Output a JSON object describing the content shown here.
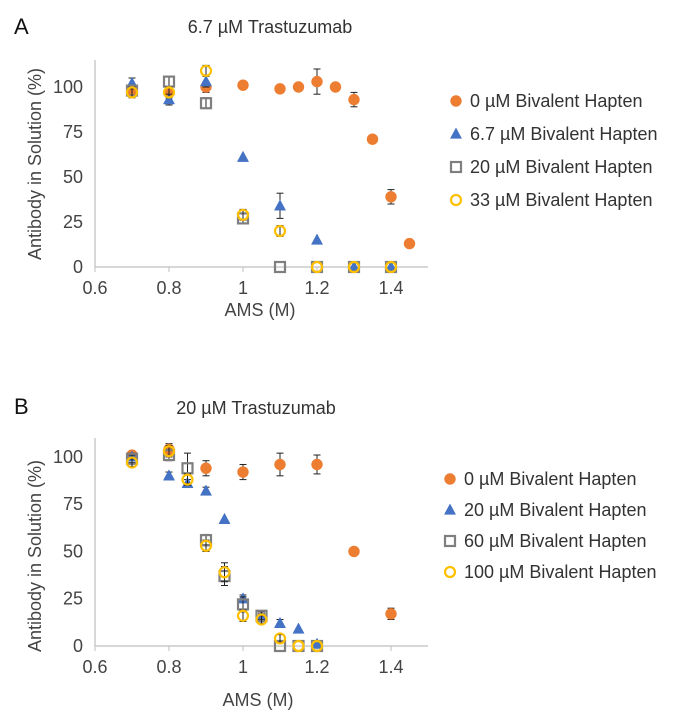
{
  "chart_data": [
    {
      "panel_label": "A",
      "type": "scatter",
      "title": "6.7 µM Trastuzumab",
      "xlabel": "AMS (M)",
      "ylabel": "Antibody in Solution (%)",
      "xlim": [
        0.6,
        1.5
      ],
      "ylim": [
        0,
        115
      ],
      "xticks": [
        "0.6",
        "0.8",
        "1",
        "1.2",
        "1.4"
      ],
      "yticks": [
        "0",
        "25",
        "50",
        "75",
        "100"
      ],
      "grid": false,
      "legend_position": "right",
      "series": [
        {
          "name": "0 µM Bivalent Hapten",
          "marker": "circle-filled",
          "color": "#ED7D31",
          "points": [
            {
              "x": 0.7,
              "y": 98,
              "err": 3
            },
            {
              "x": 0.8,
              "y": 97,
              "err": 3
            },
            {
              "x": 0.9,
              "y": 100,
              "err": 3
            },
            {
              "x": 1.0,
              "y": 101,
              "err": 1
            },
            {
              "x": 1.1,
              "y": 99,
              "err": 1
            },
            {
              "x": 1.15,
              "y": 100,
              "err": 1
            },
            {
              "x": 1.2,
              "y": 103,
              "err": 7
            },
            {
              "x": 1.25,
              "y": 100,
              "err": 1
            },
            {
              "x": 1.3,
              "y": 93,
              "err": 4
            },
            {
              "x": 1.35,
              "y": 71,
              "err": 1
            },
            {
              "x": 1.4,
              "y": 39,
              "err": 4
            },
            {
              "x": 1.45,
              "y": 13,
              "err": 1
            }
          ]
        },
        {
          "name": "6.7 µM Bivalent Hapten",
          "marker": "triangle-filled",
          "color": "#4472C4",
          "points": [
            {
              "x": 0.7,
              "y": 102,
              "err": 3
            },
            {
              "x": 0.8,
              "y": 93,
              "err": 3
            },
            {
              "x": 0.9,
              "y": 103,
              "err": 3
            },
            {
              "x": 1.0,
              "y": 61,
              "err": 1
            },
            {
              "x": 1.1,
              "y": 34,
              "err": 7
            },
            {
              "x": 1.2,
              "y": 15,
              "err": 1
            },
            {
              "x": 1.3,
              "y": 0,
              "err": 0
            },
            {
              "x": 1.4,
              "y": 0,
              "err": 0
            }
          ]
        },
        {
          "name": "20 µM Bivalent Hapten",
          "marker": "square-open",
          "color": "#7F7F7F",
          "points": [
            {
              "x": 0.7,
              "y": 98,
              "err": 3
            },
            {
              "x": 0.8,
              "y": 103,
              "err": 3
            },
            {
              "x": 0.9,
              "y": 91,
              "err": 3
            },
            {
              "x": 1.0,
              "y": 27,
              "err": 3
            },
            {
              "x": 1.1,
              "y": 0,
              "err": 0
            },
            {
              "x": 1.2,
              "y": 0,
              "err": 0
            },
            {
              "x": 1.3,
              "y": 0,
              "err": 0
            },
            {
              "x": 1.4,
              "y": 0,
              "err": 0
            }
          ]
        },
        {
          "name": "33 µM Bivalent Hapten",
          "marker": "circle-open",
          "color": "#FFC000",
          "points": [
            {
              "x": 0.7,
              "y": 97,
              "err": 3
            },
            {
              "x": 0.8,
              "y": 97,
              "err": 3
            },
            {
              "x": 0.9,
              "y": 109,
              "err": 3
            },
            {
              "x": 1.0,
              "y": 29,
              "err": 3
            },
            {
              "x": 1.1,
              "y": 20,
              "err": 3
            },
            {
              "x": 1.2,
              "y": 0,
              "err": 0
            },
            {
              "x": 1.3,
              "y": 0,
              "err": 0
            },
            {
              "x": 1.4,
              "y": 0,
              "err": 0
            }
          ]
        }
      ]
    },
    {
      "panel_label": "B",
      "type": "scatter",
      "title": "20 µM Trastuzumab",
      "xlabel": "AMS (M)",
      "ylabel": "Antibody in Solution (%)",
      "xlim": [
        0.6,
        1.5
      ],
      "ylim": [
        0,
        110
      ],
      "xticks": [
        "0.6",
        "0.8",
        "1",
        "1.2",
        "1.4"
      ],
      "yticks": [
        "0",
        "25",
        "50",
        "75",
        "100"
      ],
      "grid": false,
      "legend_position": "right",
      "series": [
        {
          "name": "0 µM Bivalent Hapten",
          "marker": "circle-filled",
          "color": "#ED7D31",
          "points": [
            {
              "x": 0.7,
              "y": 101,
              "err": 2
            },
            {
              "x": 0.8,
              "y": 104,
              "err": 3
            },
            {
              "x": 0.9,
              "y": 94,
              "err": 4
            },
            {
              "x": 1.0,
              "y": 92,
              "err": 4
            },
            {
              "x": 1.1,
              "y": 96,
              "err": 6
            },
            {
              "x": 1.2,
              "y": 96,
              "err": 5
            },
            {
              "x": 1.3,
              "y": 50,
              "err": 1
            },
            {
              "x": 1.4,
              "y": 17,
              "err": 3
            }
          ]
        },
        {
          "name": "20 µM Bivalent Hapten",
          "marker": "triangle-filled",
          "color": "#4472C4",
          "points": [
            {
              "x": 0.7,
              "y": 100,
              "err": 2
            },
            {
              "x": 0.8,
              "y": 90,
              "err": 2
            },
            {
              "x": 0.85,
              "y": 86,
              "err": 2
            },
            {
              "x": 0.9,
              "y": 82,
              "err": 2
            },
            {
              "x": 0.95,
              "y": 67,
              "err": 1
            },
            {
              "x": 1.0,
              "y": 25,
              "err": 2
            },
            {
              "x": 1.05,
              "y": 15,
              "err": 2
            },
            {
              "x": 1.1,
              "y": 12,
              "err": 2
            },
            {
              "x": 1.15,
              "y": 9,
              "err": 1
            },
            {
              "x": 1.2,
              "y": 1,
              "err": 1
            }
          ]
        },
        {
          "name": "60 µM Bivalent Hapten",
          "marker": "square-open",
          "color": "#7F7F7F",
          "points": [
            {
              "x": 0.7,
              "y": 99,
              "err": 2
            },
            {
              "x": 0.8,
              "y": 101,
              "err": 3
            },
            {
              "x": 0.85,
              "y": 94,
              "err": 8
            },
            {
              "x": 0.9,
              "y": 56,
              "err": 3
            },
            {
              "x": 0.95,
              "y": 37,
              "err": 5
            },
            {
              "x": 1.0,
              "y": 22,
              "err": 4
            },
            {
              "x": 1.05,
              "y": 16,
              "err": 2
            },
            {
              "x": 1.1,
              "y": 0,
              "err": 0
            },
            {
              "x": 1.15,
              "y": 0,
              "err": 0
            },
            {
              "x": 1.2,
              "y": 0,
              "err": 0
            }
          ]
        },
        {
          "name": "100 µM Bivalent Hapten",
          "marker": "circle-open",
          "color": "#FFC000",
          "points": [
            {
              "x": 0.7,
              "y": 97,
              "err": 2
            },
            {
              "x": 0.8,
              "y": 103,
              "err": 3
            },
            {
              "x": 0.85,
              "y": 88,
              "err": 3
            },
            {
              "x": 0.9,
              "y": 53,
              "err": 3
            },
            {
              "x": 0.95,
              "y": 39,
              "err": 5
            },
            {
              "x": 1.0,
              "y": 16,
              "err": 3
            },
            {
              "x": 1.05,
              "y": 14,
              "err": 2
            },
            {
              "x": 1.1,
              "y": 4,
              "err": 2
            },
            {
              "x": 1.15,
              "y": 0,
              "err": 0
            },
            {
              "x": 1.2,
              "y": 0,
              "err": 0
            }
          ]
        }
      ]
    }
  ]
}
